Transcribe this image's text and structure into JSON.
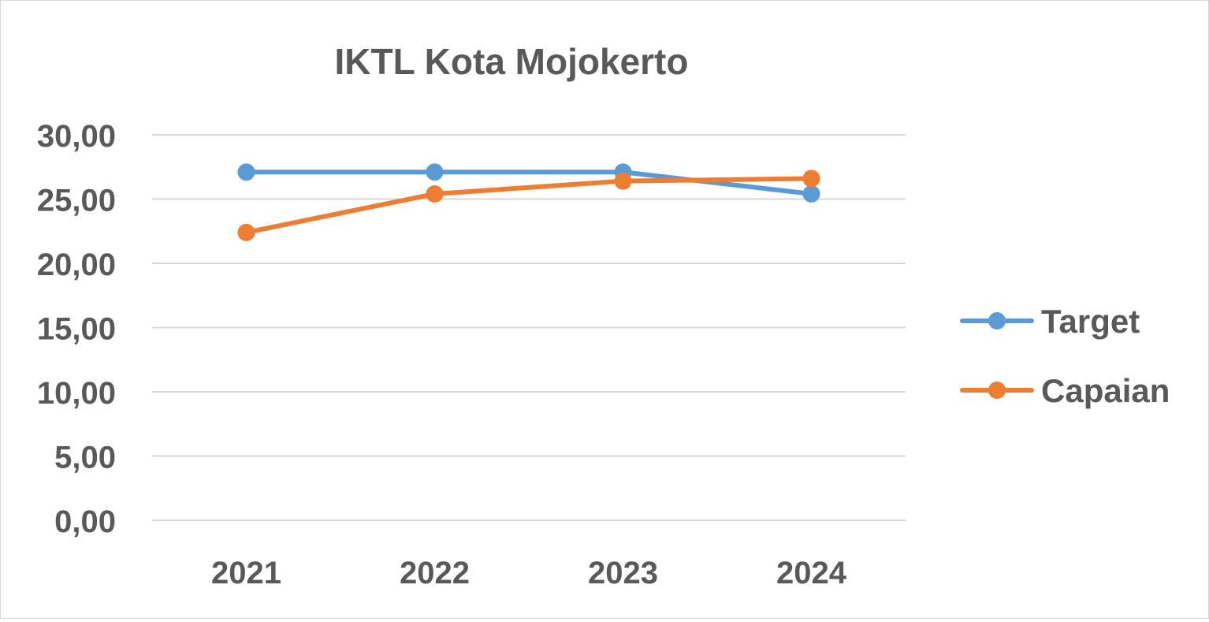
{
  "chart_data": {
    "type": "line",
    "title": "IKTL Kota Mojokerto",
    "xlabel": "",
    "ylabel": "",
    "categories": [
      "2021",
      "2022",
      "2023",
      "2024"
    ],
    "y_ticks": [
      "0,00",
      "5,00",
      "10,00",
      "15,00",
      "20,00",
      "25,00",
      "30,00"
    ],
    "ylim": [
      0,
      30
    ],
    "grid": true,
    "legend_position": "right",
    "series": [
      {
        "name": "Target",
        "color": "#5B9BD5",
        "values": [
          27.1,
          27.1,
          27.1,
          25.4
        ]
      },
      {
        "name": "Capaian",
        "color": "#ED7D31",
        "values": [
          22.4,
          25.4,
          26.4,
          26.6
        ]
      }
    ]
  }
}
